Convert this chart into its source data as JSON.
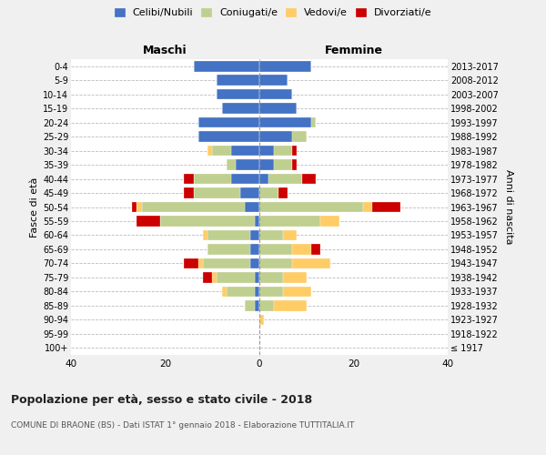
{
  "age_groups": [
    "100+",
    "95-99",
    "90-94",
    "85-89",
    "80-84",
    "75-79",
    "70-74",
    "65-69",
    "60-64",
    "55-59",
    "50-54",
    "45-49",
    "40-44",
    "35-39",
    "30-34",
    "25-29",
    "20-24",
    "15-19",
    "10-14",
    "5-9",
    "0-4"
  ],
  "birth_years": [
    "≤ 1917",
    "1918-1922",
    "1923-1927",
    "1928-1932",
    "1933-1937",
    "1938-1942",
    "1943-1947",
    "1948-1952",
    "1953-1957",
    "1958-1962",
    "1963-1967",
    "1968-1972",
    "1973-1977",
    "1978-1982",
    "1983-1987",
    "1988-1992",
    "1993-1997",
    "1998-2002",
    "2003-2007",
    "2008-2012",
    "2013-2017"
  ],
  "maschi": {
    "celibi": [
      0,
      0,
      0,
      1,
      1,
      1,
      2,
      2,
      2,
      1,
      3,
      4,
      6,
      5,
      6,
      13,
      13,
      8,
      9,
      9,
      14
    ],
    "coniugati": [
      0,
      0,
      0,
      2,
      6,
      8,
      10,
      9,
      9,
      20,
      22,
      10,
      8,
      2,
      4,
      0,
      0,
      0,
      0,
      0,
      0
    ],
    "vedovi": [
      0,
      0,
      0,
      0,
      1,
      1,
      1,
      0,
      1,
      0,
      1,
      0,
      0,
      0,
      1,
      0,
      0,
      0,
      0,
      0,
      0
    ],
    "divorziati": [
      0,
      0,
      0,
      0,
      0,
      2,
      3,
      0,
      0,
      5,
      1,
      2,
      2,
      0,
      0,
      0,
      0,
      0,
      0,
      0,
      0
    ]
  },
  "femmine": {
    "celibi": [
      0,
      0,
      0,
      0,
      0,
      0,
      0,
      0,
      0,
      0,
      0,
      0,
      2,
      3,
      3,
      7,
      11,
      8,
      7,
      6,
      11
    ],
    "coniugati": [
      0,
      0,
      0,
      3,
      5,
      5,
      7,
      7,
      5,
      13,
      22,
      4,
      7,
      4,
      4,
      3,
      1,
      0,
      0,
      0,
      0
    ],
    "vedovi": [
      0,
      0,
      1,
      7,
      6,
      5,
      8,
      4,
      3,
      4,
      2,
      0,
      0,
      0,
      0,
      0,
      0,
      0,
      0,
      0,
      0
    ],
    "divorziati": [
      0,
      0,
      0,
      0,
      0,
      0,
      0,
      2,
      0,
      0,
      6,
      2,
      3,
      1,
      1,
      0,
      0,
      0,
      0,
      0,
      0
    ]
  },
  "colors": {
    "celibi": "#4472C4",
    "coniugati": "#BFCF8F",
    "vedovi": "#FFCC66",
    "divorziati": "#CC0000"
  },
  "xlim": 40,
  "title": "Popolazione per età, sesso e stato civile - 2018",
  "subtitle": "COMUNE DI BRAONE (BS) - Dati ISTAT 1° gennaio 2018 - Elaborazione TUTTITALIA.IT",
  "ylabel": "Fasce di età",
  "y2label": "Anni di nascita",
  "legend_labels": [
    "Celibi/Nubili",
    "Coniugati/e",
    "Vedovi/e",
    "Divorziati/e"
  ],
  "background_color": "#f0f0f0",
  "plot_bg_color": "#ffffff"
}
